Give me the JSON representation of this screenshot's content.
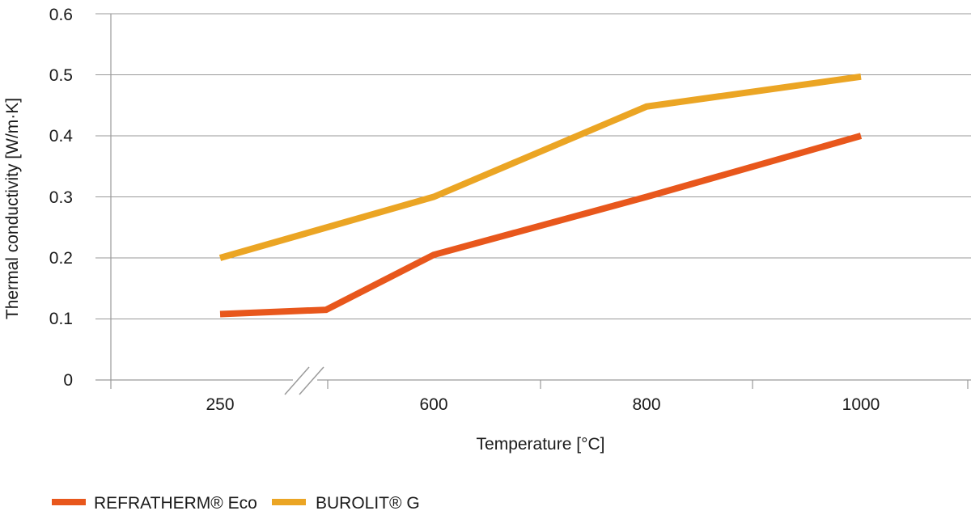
{
  "chart_data": {
    "type": "line",
    "title": "",
    "xlabel": "Temperature [°C]",
    "ylabel": "Thermal conductivity [W/m·K]",
    "ylim": [
      0,
      0.6
    ],
    "y_ticks": [
      "0",
      "0.1",
      "0.2",
      "0.3",
      "0.4",
      "0.5",
      "0.6"
    ],
    "y_tick_values": [
      0,
      0.1,
      0.2,
      0.3,
      0.4,
      0.5,
      0.6
    ],
    "x_tick_labels": [
      "250",
      "600",
      "800",
      "1000"
    ],
    "axis_break": "between 250 and 600",
    "grid": true,
    "legend_position": "bottom-left",
    "series": [
      {
        "name": "REFRATHERM® Eco",
        "color": "#E8571C",
        "points": [
          {
            "x": 250,
            "y": 0.108
          },
          {
            "x": 350,
            "y": 0.115
          },
          {
            "x": 600,
            "y": 0.205
          },
          {
            "x": 800,
            "y": 0.3
          },
          {
            "x": 1000,
            "y": 0.4
          }
        ]
      },
      {
        "name": "BUROLIT® G",
        "color": "#EBA524",
        "points": [
          {
            "x": 250,
            "y": 0.2
          },
          {
            "x": 600,
            "y": 0.3
          },
          {
            "x": 800,
            "y": 0.448
          },
          {
            "x": 1000,
            "y": 0.497
          }
        ]
      }
    ]
  }
}
